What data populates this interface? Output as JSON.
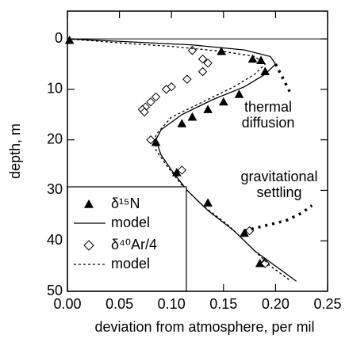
{
  "chart_data": {
    "type": "scatter",
    "x_label": "deviation from atmosphere, per mil",
    "y_label": "depth, m",
    "xlim": [
      0,
      0.25
    ],
    "ylim": [
      -5.5,
      50
    ],
    "y_inverted": true,
    "xticks": [
      {
        "value": 0,
        "label": "0.00"
      },
      {
        "value": 0.05,
        "label": "0.05"
      },
      {
        "value": 0.1,
        "label": "0.10"
      },
      {
        "value": 0.15,
        "label": "0.15"
      },
      {
        "value": 0.2,
        "label": "0.20"
      },
      {
        "value": 0.25,
        "label": "0.25"
      }
    ],
    "yticks": [
      0,
      10,
      20,
      30,
      40,
      50
    ],
    "reference_line": 0,
    "series": [
      {
        "name": "δ¹⁵N",
        "mark": "triangle",
        "color": "#000",
        "x": [
          0.002,
          0.148,
          0.178,
          0.186,
          0.19,
          0.165,
          0.15,
          0.135,
          0.12,
          0.11,
          0.085,
          0.105,
          0.135,
          0.17,
          0.185,
          0.189
        ],
        "y": [
          0.3,
          2.5,
          4.0,
          4.3,
          6.5,
          11.0,
          12.5,
          14.0,
          15.5,
          16.8,
          20.5,
          26.5,
          32.5,
          38.5,
          44.5,
          44.3
        ]
      },
      {
        "name": "model",
        "mark": "solid",
        "color": "#000",
        "x": [
          0,
          0.05,
          0.12,
          0.17,
          0.195,
          0.2,
          0.19,
          0.17,
          0.14,
          0.11,
          0.09,
          0.085,
          0.09,
          0.1,
          0.115,
          0.135,
          0.16,
          0.18,
          0.2,
          0.22
        ],
        "y": [
          0,
          0.5,
          1.2,
          2.2,
          3.5,
          5,
          7,
          9.5,
          12,
          15,
          18,
          20,
          23,
          26,
          30,
          34,
          38,
          42,
          45,
          48
        ]
      },
      {
        "name": "δ⁴⁰Ar/4",
        "mark": "diamond",
        "color": "#000",
        "x": [
          0.12,
          0.13,
          0.135,
          0.13,
          0.115,
          0.1,
          0.095,
          0.085,
          0.08,
          0.075,
          0.072,
          0.074,
          0.08,
          0.11,
          0.175,
          0.19
        ],
        "y": [
          2.3,
          4.0,
          4.8,
          6.5,
          8.0,
          9.5,
          10.0,
          11.5,
          12.5,
          13.5,
          14.0,
          14.5,
          20.0,
          26.0,
          38.0,
          44.5
        ]
      },
      {
        "name": "model",
        "mark": "dotted",
        "color": "#000",
        "x": [
          0,
          0.05,
          0.1,
          0.15,
          0.18,
          0.19,
          0.18,
          0.16,
          0.13,
          0.1,
          0.085,
          0.085,
          0.095,
          0.11,
          0.13,
          0.155,
          0.175,
          0.195,
          0.215
        ],
        "y": [
          0,
          0.8,
          1.5,
          2.5,
          3.5,
          5,
          7,
          9.5,
          12.5,
          15.5,
          19,
          22,
          25,
          29,
          33,
          37,
          41,
          45,
          48
        ]
      }
    ],
    "annotations": [
      {
        "lines": [
          "thermal",
          "diffusion"
        ],
        "x": [
          0.2,
          0.205,
          0.21,
          0.215
        ],
        "y": [
          5,
          7,
          9,
          11
        ]
      },
      {
        "lines": [
          "gravitational",
          "settling"
        ],
        "x": [
          0.17,
          0.19,
          0.21,
          0.225,
          0.235
        ],
        "y": [
          38,
          37,
          36,
          34.5,
          33
        ]
      }
    ]
  }
}
